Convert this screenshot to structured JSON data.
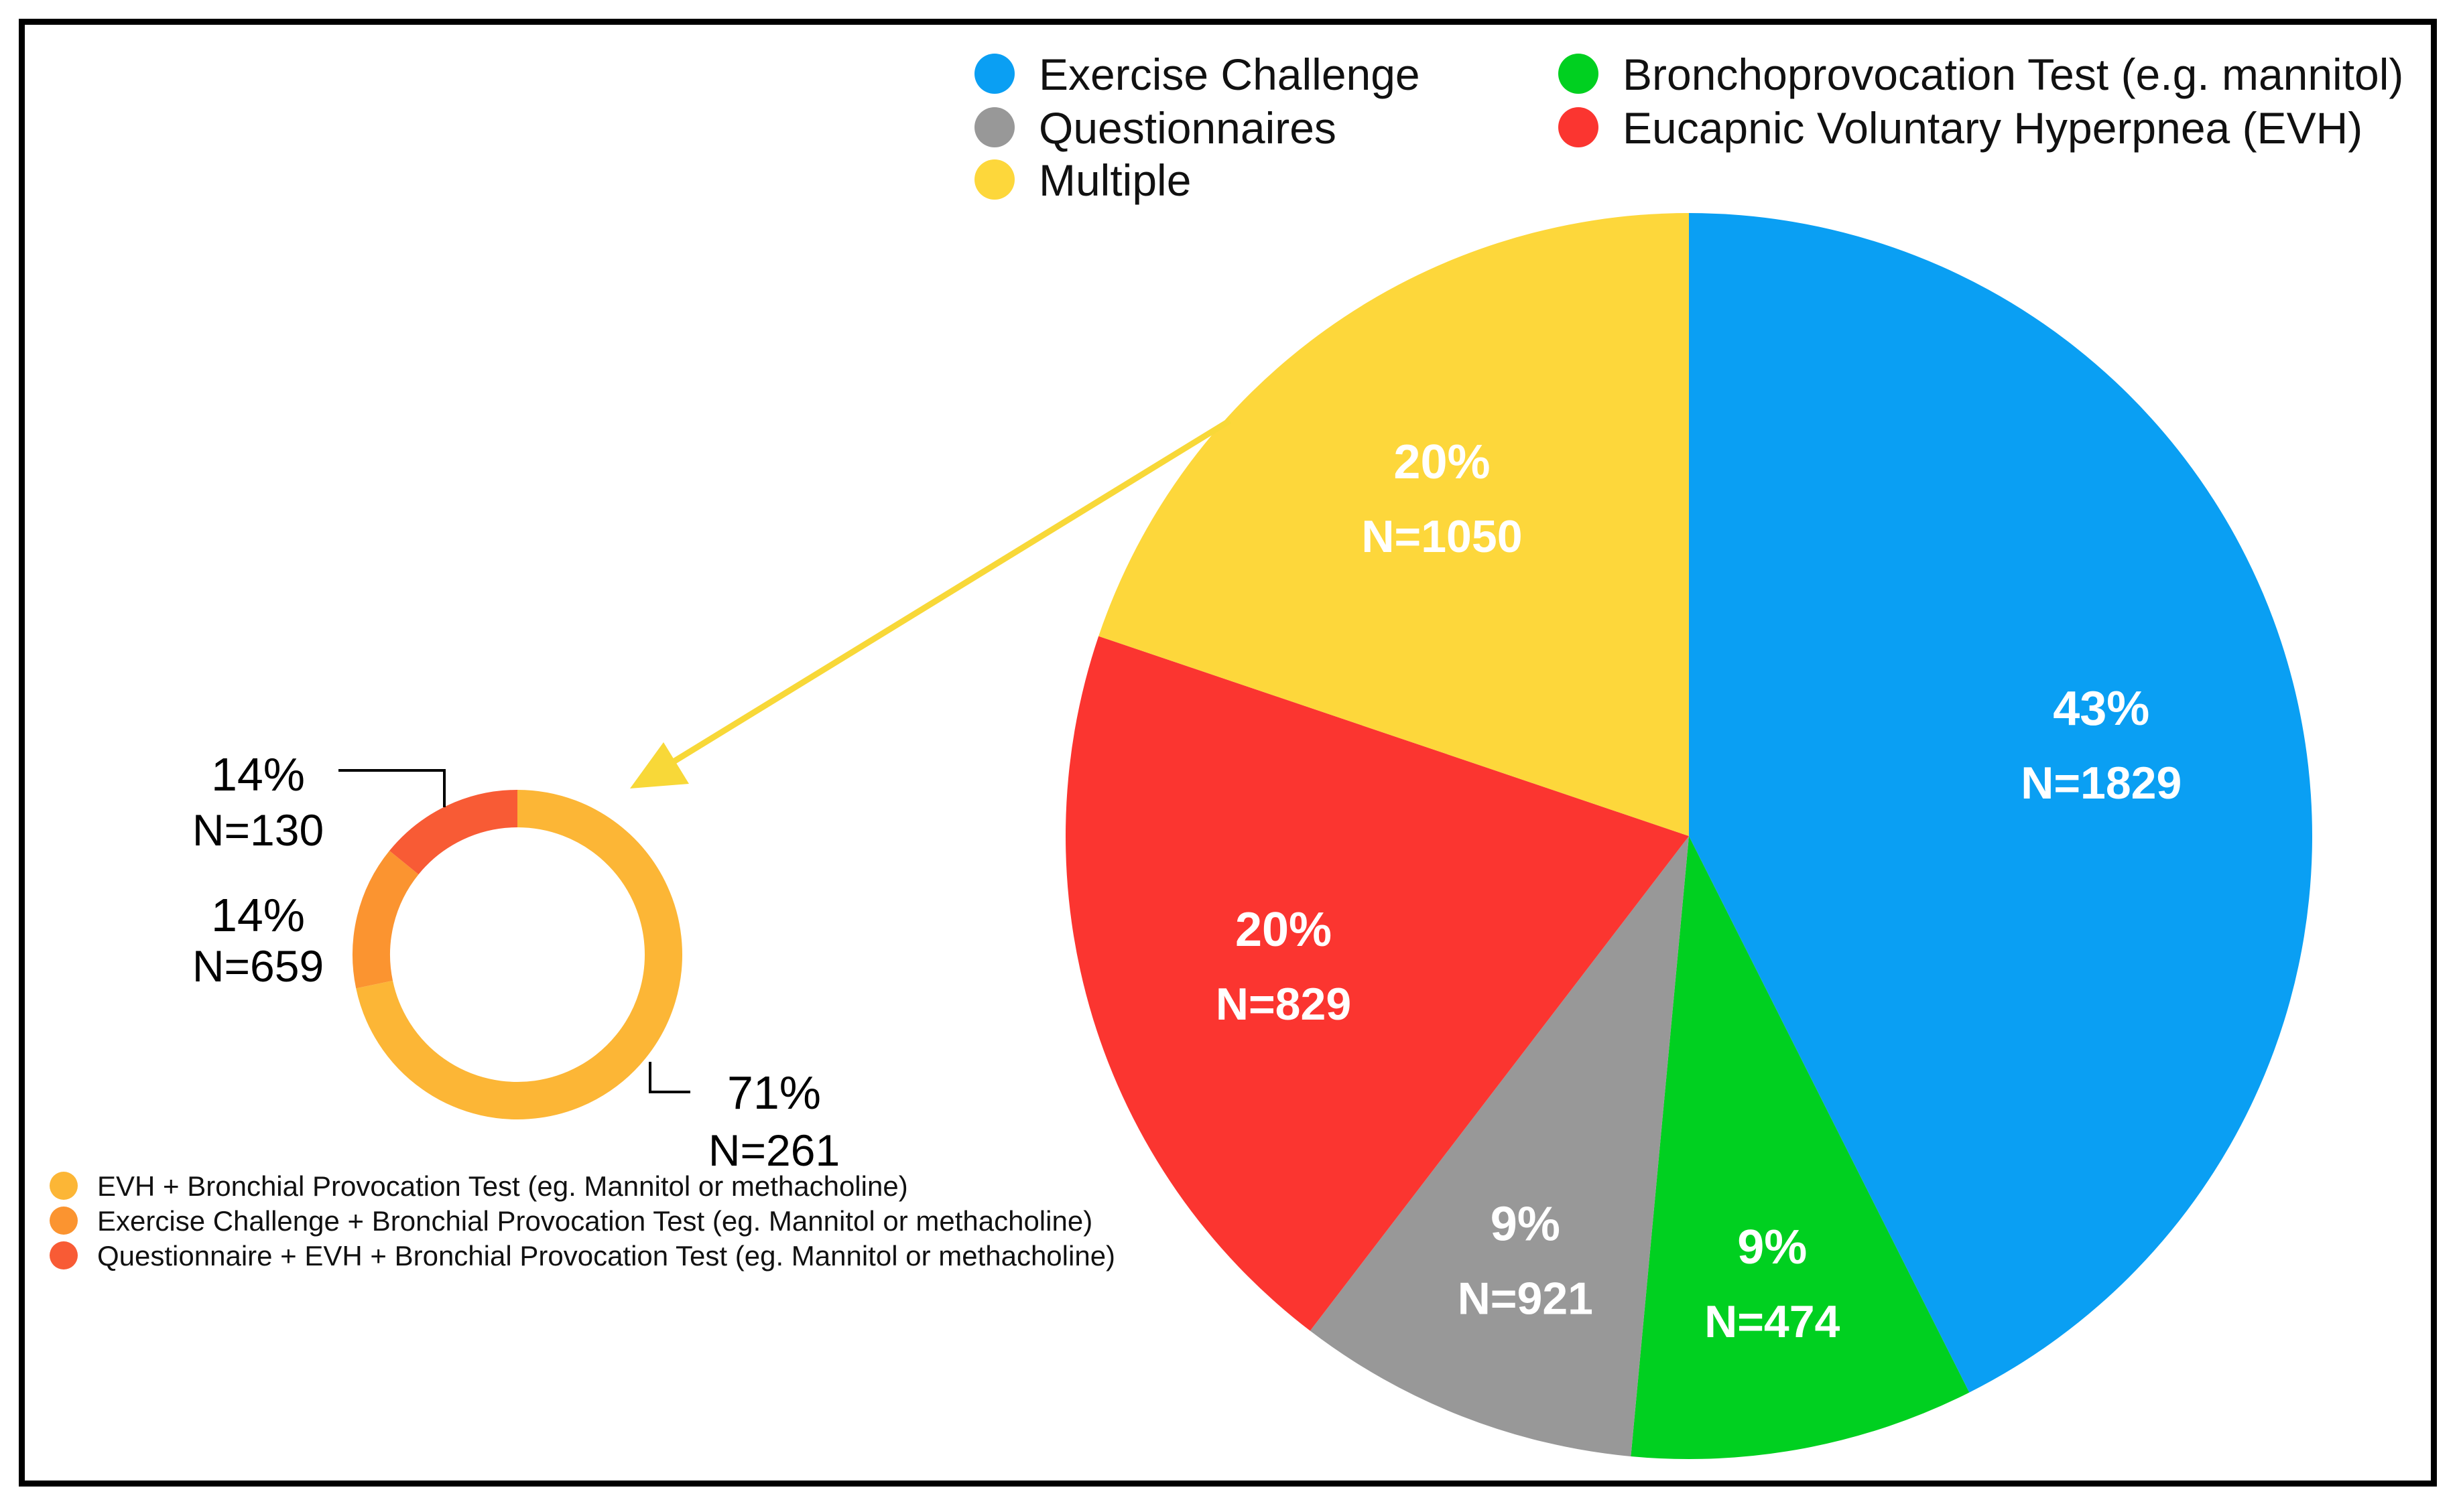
{
  "chart_data": [
    {
      "type": "pie",
      "title": "",
      "legend_position": "top-right",
      "slices": [
        {
          "label": "Exercise Challenge",
          "percent": 43,
          "pct_label": "43%",
          "n_label": "N=1829",
          "color": "#0a9ff3"
        },
        {
          "label": "Bronchoprovocation Test (e.g. mannitol)",
          "percent": 9,
          "pct_label": "9%",
          "n_label": "N=474",
          "color": "#00d020"
        },
        {
          "label": "Questionnaires",
          "percent": 9,
          "pct_label": "9%",
          "n_label": "N=921",
          "color": "#989898"
        },
        {
          "label": "Eucapnic Voluntary Hyperpnea (EVH)",
          "percent": 20,
          "pct_label": "20%",
          "n_label": "N=829",
          "color": "#fb3530"
        },
        {
          "label": "Multiple",
          "percent": 20,
          "pct_label": "20%",
          "n_label": "N=1050",
          "color": "#fdd73b"
        }
      ],
      "legend_order": [
        0,
        2,
        4,
        1,
        3
      ]
    },
    {
      "type": "pie",
      "title": "",
      "donut": true,
      "legend_position": "bottom-left",
      "slices": [
        {
          "label": "EVH + Bronchial Provocation Test (eg. Mannitol or methacholine)",
          "percent": 71,
          "pct_label": "71%",
          "n_label": "N=261",
          "color": "#fcb636"
        },
        {
          "label": "Exercise Challenge + Bronchial Provocation Test (eg. Mannitol or methacholine)",
          "percent": 14,
          "pct_label": "14%",
          "n_label": "N=659",
          "color": "#fb9430"
        },
        {
          "label": "Questionnaire + EVH + Bronchial Provocation Test (eg. Mannitol or methacholine)",
          "percent": 14,
          "pct_label": "14%",
          "n_label": "N=130",
          "color": "#f85b35"
        }
      ]
    }
  ]
}
